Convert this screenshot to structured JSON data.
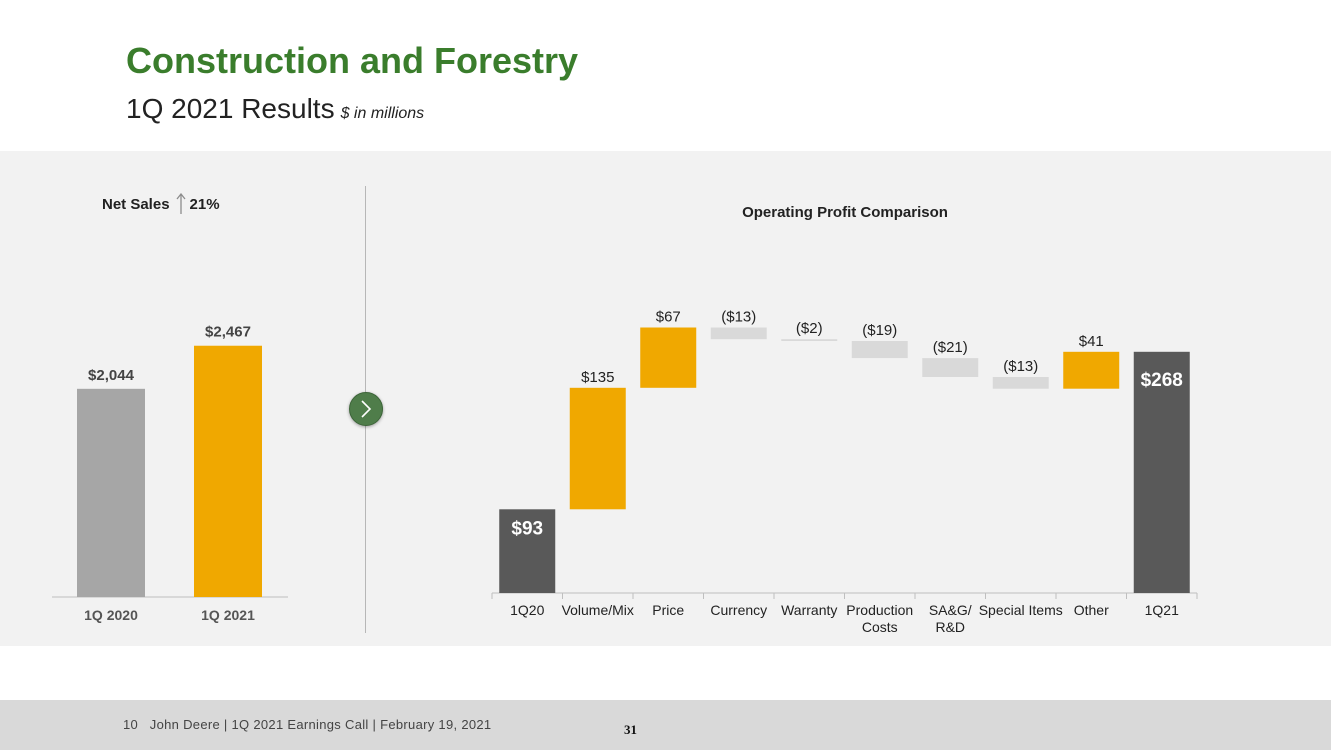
{
  "slide": {
    "title": "Construction and Forestry",
    "subtitle": "1Q 2021 Results",
    "units": "$ in millions",
    "footer": "10   John Deere | 1Q 2021 Earnings Call | February 19, 2021",
    "page_number": "31"
  },
  "net_sales": {
    "label": "Net Sales",
    "change": "21%",
    "arrow_icon": "up-arrow-icon"
  },
  "colors": {
    "brand_green": "#3a7d2c",
    "increase": "#f0a800",
    "decrease": "#d9d9d9",
    "total": "#595959",
    "prior_year": "#a6a6a6"
  },
  "chart_data": [
    {
      "type": "bar",
      "categories": [
        "1Q 2020",
        "1Q 2021"
      ],
      "values": [
        2044,
        2467
      ],
      "value_labels": [
        "$2,044",
        "$2,467"
      ],
      "colors": [
        "#a6a6a6",
        "#f0a800"
      ],
      "ylim": [
        0,
        2700
      ],
      "grid": false,
      "legend": "none"
    },
    {
      "type": "waterfall",
      "title": "Operating Profit Comparison",
      "categories": [
        "1Q20",
        "Volume/Mix",
        "Price",
        "Currency",
        "Warranty",
        "Production Costs",
        "SA&G/ R&D",
        "Special Items",
        "Other",
        "1Q21"
      ],
      "category_lines": [
        [
          "1Q20"
        ],
        [
          "Volume/Mix"
        ],
        [
          "Price"
        ],
        [
          "Currency"
        ],
        [
          "Warranty"
        ],
        [
          "Production",
          "Costs"
        ],
        [
          "SA&G/",
          "R&D"
        ],
        [
          "Special Items"
        ],
        [
          "Other"
        ],
        [
          "1Q21"
        ]
      ],
      "values": [
        93,
        135,
        67,
        -13,
        -2,
        -19,
        -21,
        -13,
        41,
        268
      ],
      "value_labels": [
        "$93",
        "$135",
        "$67",
        "($13)",
        "($2)",
        "($19)",
        "($21)",
        "($13)",
        "$41",
        "$268"
      ],
      "kinds": [
        "total",
        "delta",
        "delta",
        "delta",
        "delta",
        "delta",
        "delta",
        "delta",
        "delta",
        "total"
      ],
      "ylim": [
        0,
        300
      ],
      "grid": false,
      "legend": "none"
    }
  ]
}
